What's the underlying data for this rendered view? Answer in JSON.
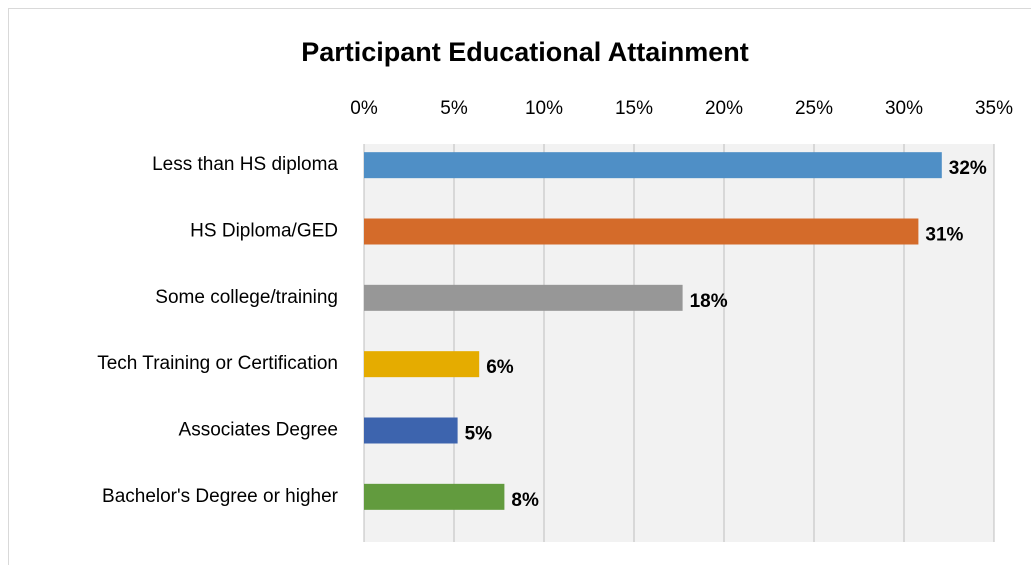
{
  "chart_data": {
    "type": "bar",
    "orientation": "horizontal",
    "title": "Participant Educational Attainment",
    "categories": [
      "Less than HS diploma",
      "HS Diploma/GED",
      "Some college/training",
      "Tech Training or Certification",
      "Associates Degree",
      "Bachelor's Degree or higher"
    ],
    "values": [
      32.1,
      30.8,
      17.7,
      6.4,
      5.2,
      7.8
    ],
    "value_labels": [
      "32%",
      "31%",
      "18%",
      "6%",
      "5%",
      "8%"
    ],
    "colors": [
      "#4f8fc6",
      "#d46b2a",
      "#979797",
      "#e5ac00",
      "#3d64ae",
      "#629b3e"
    ],
    "xlim": [
      0,
      35
    ],
    "xticks": [
      {
        "value": 0,
        "label": "0%"
      },
      {
        "value": 5,
        "label": "5%"
      },
      {
        "value": 10,
        "label": "10%"
      },
      {
        "value": 15,
        "label": "15%"
      },
      {
        "value": 20,
        "label": "20%"
      },
      {
        "value": 25,
        "label": "25%"
      },
      {
        "value": 30,
        "label": "30%"
      },
      {
        "value": 35,
        "label": "35%"
      }
    ],
    "grid": true
  }
}
